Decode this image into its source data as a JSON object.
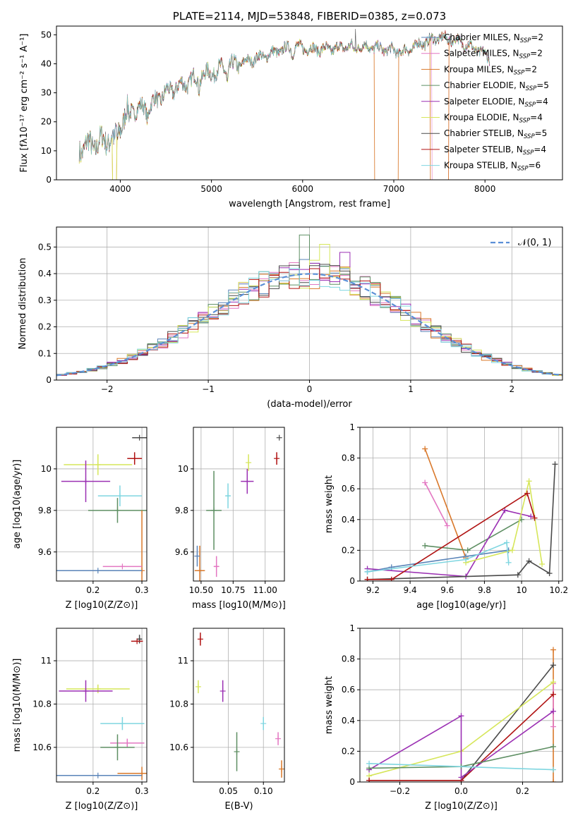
{
  "colors": {
    "Chabrier MILES": "#5a84b8",
    "Salpeter MILES": "#e377c2",
    "Kroupa MILES": "#d9782a",
    "Chabrier ELODIE": "#5e8f63",
    "Salpeter ELODIE": "#9b30b3",
    "Kroupa ELODIE": "#d6e65a",
    "Chabrier STELIB": "#4a4a4a",
    "Salpeter STELIB": "#b01212",
    "Kroupa STELIB": "#7fd6e0",
    "gaussian": "#5b8fd6",
    "grid": "#b0b0b0"
  },
  "chart_data": [
    {
      "id": "spectrum",
      "type": "line",
      "title": "PLATE=2114, MJD=53848, FIBERID=0385, z=0.073",
      "xlabel": "wavelength [Angstrom, rest frame]",
      "ylabel": "Flux [fλ10⁻¹⁷ erg cm⁻² s⁻¹ A⁻¹]",
      "xlim": [
        3300,
        8850
      ],
      "ylim": [
        0,
        53
      ],
      "xticks": [
        4000,
        5000,
        6000,
        7000,
        8000
      ],
      "yticks": [
        0,
        10,
        20,
        30,
        40,
        50
      ],
      "grid": false,
      "legend_position": "upper-right",
      "legend": [
        {
          "label": "Chabrier MILES, N",
          "sub": "SSP",
          "suffix": "=2"
        },
        {
          "label": "Salpeter MILES, N",
          "sub": "SSP",
          "suffix": "=2"
        },
        {
          "label": "Kroupa MILES, N",
          "sub": "SSP",
          "suffix": "=2"
        },
        {
          "label": "Chabrier ELODIE, N",
          "sub": "SSP",
          "suffix": "=5"
        },
        {
          "label": "Salpeter ELODIE, N",
          "sub": "SSP",
          "suffix": "=4"
        },
        {
          "label": "Kroupa ELODIE, N",
          "sub": "SSP",
          "suffix": "=4"
        },
        {
          "label": "Chabrier STELIB, N",
          "sub": "SSP",
          "suffix": "=5"
        },
        {
          "label": "Salpeter STELIB, N",
          "sub": "SSP",
          "suffix": "=4"
        },
        {
          "label": "Kroupa STELIB, N",
          "sub": "SSP",
          "suffix": "=6"
        }
      ],
      "continuum": [
        [
          3550,
          11
        ],
        [
          3700,
          12
        ],
        [
          3800,
          13
        ],
        [
          3900,
          15
        ],
        [
          4000,
          19
        ],
        [
          4100,
          24
        ],
        [
          4300,
          25
        ],
        [
          4500,
          30
        ],
        [
          4700,
          33
        ],
        [
          4900,
          36
        ],
        [
          5100,
          38
        ],
        [
          5300,
          40
        ],
        [
          5500,
          42
        ],
        [
          5700,
          44
        ],
        [
          5900,
          46
        ],
        [
          6100,
          45
        ],
        [
          6300,
          45
        ],
        [
          6500,
          46
        ],
        [
          6700,
          46
        ],
        [
          6900,
          45
        ],
        [
          7100,
          44
        ],
        [
          7300,
          47
        ],
        [
          7500,
          49
        ],
        [
          7700,
          48
        ],
        [
          7900,
          45
        ],
        [
          8050,
          42
        ]
      ],
      "spike": {
        "x": 6580,
        "y": 52
      },
      "dropouts": [
        {
          "series": "Kroupa MILES",
          "x0": 3915,
          "x1": 3960
        },
        {
          "series": "Kroupa ELODIE",
          "x0": 3915,
          "x1": 3960
        },
        {
          "series": "Kroupa MILES",
          "x0": 6785,
          "x1": 7050
        },
        {
          "series": "Kroupa MILES",
          "x0": 7400,
          "x1": 7600
        },
        {
          "series": "Salpeter MILES",
          "x0": 7420,
          "x1": 7600
        }
      ]
    },
    {
      "id": "residuals",
      "type": "histogram",
      "xlabel": "(data-model)/error",
      "ylabel": "Normed distribution",
      "xlim": [
        -2.5,
        2.5
      ],
      "ylim": [
        0,
        0.575
      ],
      "xticks": [
        -2,
        -1,
        0,
        1,
        2
      ],
      "yticks": [
        0.0,
        0.1,
        0.2,
        0.3,
        0.4,
        0.5
      ],
      "grid": true,
      "bin_width": 0.1,
      "legend_position": "upper-right",
      "legend": "𝒩(0, 1)",
      "gaussian": {
        "mu": 0,
        "sigma": 1
      },
      "series_peak_bins": {
        "Chabrier ELODIE": {
          "x": 0.0,
          "y": 0.545
        },
        "Kroupa ELODIE": {
          "x": 0.15,
          "y": 0.51
        },
        "Salpeter ELODIE": {
          "x": 0.35,
          "y": 0.48
        }
      }
    },
    {
      "id": "age_vs_Z",
      "type": "errorbar",
      "xlabel": "Z [log10(Z/Z⊙)]",
      "ylabel": "age  [log10(age/yr)]",
      "xlim": [
        0.125,
        0.31
      ],
      "ylim": [
        9.46,
        10.2
      ],
      "xticks": [
        0.2,
        0.3
      ],
      "yticks": [
        9.6,
        9.8,
        10.0
      ],
      "grid": true,
      "points": [
        {
          "series": "Chabrier STELIB",
          "x": 0.295,
          "xerr": 0.015,
          "y": 10.15,
          "yerr": 0.0
        },
        {
          "series": "Salpeter STELIB",
          "x": 0.285,
          "xerr": 0.015,
          "y": 10.05,
          "yerr": 0.03
        },
        {
          "series": "Kroupa ELODIE",
          "x": 0.21,
          "xerr": 0.07,
          "y": 10.02,
          "yerr": 0.05
        },
        {
          "series": "Salpeter ELODIE",
          "x": 0.185,
          "xerr": 0.05,
          "y": 9.94,
          "yerr": 0.1
        },
        {
          "series": "Kroupa STELIB",
          "x": 0.255,
          "xerr": 0.045,
          "y": 9.87,
          "yerr": 0.05
        },
        {
          "series": "Chabrier ELODIE",
          "x": 0.25,
          "xerr": 0.06,
          "y": 9.8,
          "yerr": 0.06
        },
        {
          "series": "Kroupa MILES",
          "x": 0.3,
          "xerr": 0.0,
          "y": 9.51,
          "yerr": 0.29
        },
        {
          "series": "Salpeter MILES",
          "x": 0.26,
          "xerr": 0.04,
          "y": 9.53,
          "yerr": 0.0
        },
        {
          "series": "Chabrier MILES",
          "x": 0.21,
          "xerr": 0.09,
          "y": 9.51,
          "yerr": 0.0
        }
      ]
    },
    {
      "id": "age_vs_mass",
      "type": "errorbar",
      "xlabel": "mass [log10(M/M⊙)]",
      "xlim": [
        10.44,
        11.15
      ],
      "ylim": [
        9.46,
        10.2
      ],
      "xticks": [
        10.5,
        10.75,
        11.0
      ],
      "xticklabels": [
        "10.50",
        "10.75",
        "11.00"
      ],
      "yticks": [
        9.6,
        9.8,
        10.0
      ],
      "grid": true,
      "points": [
        {
          "series": "Chabrier STELIB",
          "x": 11.11,
          "xerr": 0.0,
          "y": 10.15,
          "yerr": 0.0
        },
        {
          "series": "Salpeter STELIB",
          "x": 11.09,
          "xerr": 0.0,
          "y": 10.05,
          "yerr": 0.03
        },
        {
          "series": "Kroupa ELODIE",
          "x": 10.87,
          "xerr": 0.0,
          "y": 10.03,
          "yerr": 0.04
        },
        {
          "series": "Salpeter ELODIE",
          "x": 10.86,
          "xerr": 0.05,
          "y": 9.94,
          "yerr": 0.06
        },
        {
          "series": "Kroupa STELIB",
          "x": 10.71,
          "xerr": 0.02,
          "y": 9.87,
          "yerr": 0.06
        },
        {
          "series": "Chabrier ELODIE",
          "x": 10.6,
          "xerr": 0.06,
          "y": 9.8,
          "yerr": 0.19
        },
        {
          "series": "Salpeter MILES",
          "x": 10.62,
          "xerr": 0.02,
          "y": 9.53,
          "yerr": 0.05
        },
        {
          "series": "Kroupa MILES",
          "x": 10.49,
          "xerr": 0.04,
          "y": 9.51,
          "yerr": 0.12
        },
        {
          "series": "Chabrier MILES",
          "x": 10.47,
          "xerr": 0.0,
          "y": 9.58,
          "yerr": 0.05
        }
      ]
    },
    {
      "id": "weight_vs_age",
      "type": "line",
      "xlabel": "age  [log10(age/yr)]",
      "ylabel": "mass weight",
      "xlim": [
        9.13,
        10.22
      ],
      "ylim": [
        0,
        1.0
      ],
      "xticks": [
        9.2,
        9.4,
        9.6,
        9.8,
        10.0,
        10.2
      ],
      "yticks": [
        0.0,
        0.2,
        0.4,
        0.6,
        0.8,
        1.0
      ],
      "grid": true,
      "series": [
        {
          "name": "Salpeter MILES",
          "x": [
            9.48,
            9.6
          ],
          "y": [
            0.64,
            0.36
          ]
        },
        {
          "name": "Kroupa MILES",
          "x": [
            9.48,
            9.7
          ],
          "y": [
            0.86,
            0.15
          ]
        },
        {
          "name": "Chabrier MILES",
          "x": [
            9.17,
            9.3,
            9.7,
            9.93
          ],
          "y": [
            0.06,
            0.09,
            0.16,
            0.2
          ]
        },
        {
          "name": "Chabrier ELODIE",
          "x": [
            9.48,
            9.71,
            10.0
          ],
          "y": [
            0.23,
            0.2,
            0.4
          ]
        },
        {
          "name": "Salpeter ELODIE",
          "x": [
            9.17,
            9.7,
            9.91,
            10.05
          ],
          "y": [
            0.08,
            0.03,
            0.46,
            0.42
          ]
        },
        {
          "name": "Kroupa ELODIE",
          "x": [
            9.7,
            9.95,
            10.04,
            10.11
          ],
          "y": [
            0.12,
            0.2,
            0.65,
            0.11
          ]
        },
        {
          "name": "Chabrier STELIB",
          "x": [
            9.17,
            9.98,
            10.04,
            10.15,
            10.18
          ],
          "y": [
            0.01,
            0.04,
            0.13,
            0.05,
            0.76
          ]
        },
        {
          "name": "Salpeter STELIB",
          "x": [
            9.17,
            9.3,
            10.03,
            10.07
          ],
          "y": [
            0.01,
            0.01,
            0.57,
            0.41
          ]
        },
        {
          "name": "Kroupa STELIB",
          "x": [
            9.17,
            9.7,
            9.92,
            9.93
          ],
          "y": [
            0.06,
            0.14,
            0.25,
            0.12
          ]
        }
      ]
    },
    {
      "id": "mass_vs_Z",
      "type": "errorbar",
      "xlabel": "Z [log10(Z/Z⊙)]",
      "ylabel": "mass [log10(M/M⊙)]",
      "xlim": [
        0.125,
        0.31
      ],
      "ylim": [
        10.44,
        11.15
      ],
      "xticks": [
        0.2,
        0.3
      ],
      "yticks": [
        10.6,
        10.8,
        11.0
      ],
      "grid": true,
      "points": [
        {
          "series": "Chabrier STELIB",
          "x": 0.295,
          "xerr": 0.005,
          "y": 11.1,
          "yerr": 0.02
        },
        {
          "series": "Salpeter STELIB",
          "x": 0.29,
          "xerr": 0.012,
          "y": 11.09,
          "yerr": 0.0
        },
        {
          "series": "Kroupa ELODIE",
          "x": 0.21,
          "xerr": 0.065,
          "y": 10.87,
          "yerr": 0.02
        },
        {
          "series": "Salpeter ELODIE",
          "x": 0.185,
          "xerr": 0.055,
          "y": 10.86,
          "yerr": 0.05
        },
        {
          "series": "Kroupa STELIB",
          "x": 0.26,
          "xerr": 0.045,
          "y": 10.71,
          "yerr": 0.03
        },
        {
          "series": "Salpeter MILES",
          "x": 0.27,
          "xerr": 0.035,
          "y": 10.62,
          "yerr": 0.02
        },
        {
          "series": "Chabrier ELODIE",
          "x": 0.25,
          "xerr": 0.035,
          "y": 10.6,
          "yerr": 0.06
        },
        {
          "series": "Kroupa MILES",
          "x": 0.3,
          "xerr": 0.05,
          "y": 10.48,
          "yerr": 0.03
        },
        {
          "series": "Chabrier MILES",
          "x": 0.21,
          "xerr": 0.09,
          "y": 10.47,
          "yerr": 0.0
        }
      ]
    },
    {
      "id": "mass_vs_ebv",
      "type": "errorbar",
      "xlabel": "E(B-V)",
      "xlim": [
        0.0,
        0.13
      ],
      "ylim": [
        10.44,
        11.15
      ],
      "xticks": [
        0.05,
        0.1
      ],
      "xticklabels": [
        "0.05",
        "0.10"
      ],
      "yticks": [
        10.6,
        10.8,
        11.0
      ],
      "grid": true,
      "points": [
        {
          "series": "Salpeter STELIB",
          "x": 0.01,
          "xerr": 0.0,
          "y": 11.1,
          "yerr": 0.03
        },
        {
          "series": "Kroupa ELODIE",
          "x": 0.007,
          "xerr": 0.0,
          "y": 10.88,
          "yerr": 0.03
        },
        {
          "series": "Salpeter ELODIE",
          "x": 0.042,
          "xerr": 0.0,
          "y": 10.86,
          "yerr": 0.05
        },
        {
          "series": "Kroupa STELIB",
          "x": 0.1,
          "xerr": 0.0,
          "y": 10.71,
          "yerr": 0.03
        },
        {
          "series": "Salpeter MILES",
          "x": 0.121,
          "xerr": 0.0,
          "y": 10.64,
          "yerr": 0.03
        },
        {
          "series": "Chabrier ELODIE",
          "x": 0.062,
          "xerr": 0.0,
          "y": 10.58,
          "yerr": 0.09
        },
        {
          "series": "Kroupa MILES",
          "x": 0.126,
          "xerr": 0.0,
          "y": 10.5,
          "yerr": 0.04
        }
      ]
    },
    {
      "id": "weight_vs_Z",
      "type": "line",
      "xlabel": "Z [log10(Z/Z⊙)]",
      "ylabel": "mass weight",
      "xlim": [
        -0.33,
        0.33
      ],
      "ylim": [
        0,
        1.0
      ],
      "xticks": [
        -0.2,
        0.0,
        0.2
      ],
      "xticklabels": [
        "−0.2",
        "0.0",
        "0.2"
      ],
      "yticks": [
        0.0,
        0.2,
        0.4,
        0.6,
        0.8,
        1.0
      ],
      "grid": true,
      "series": [
        {
          "name": "Kroupa MILES",
          "x": [
            0.3,
            0.3
          ],
          "y": [
            0.86,
            0.0
          ]
        },
        {
          "name": "Salpeter MILES",
          "x": [
            0.3,
            0.3
          ],
          "y": [
            0.64,
            0.36
          ]
        },
        {
          "name": "Chabrier STELIB",
          "x": [
            -0.3,
            0.0,
            0.3
          ],
          "y": [
            0.01,
            0.01,
            0.76
          ]
        },
        {
          "name": "Kroupa ELODIE",
          "x": [
            -0.3,
            0.0,
            0.3
          ],
          "y": [
            0.04,
            0.2,
            0.65
          ]
        },
        {
          "name": "Salpeter STELIB",
          "x": [
            -0.3,
            0.0,
            0.3
          ],
          "y": [
            0.01,
            0.01,
            0.57
          ]
        },
        {
          "name": "Salpeter ELODIE",
          "x": [
            -0.3,
            0.0,
            0.0,
            0.3
          ],
          "y": [
            0.08,
            0.43,
            0.03,
            0.46
          ]
        },
        {
          "name": "Chabrier ELODIE",
          "x": [
            -0.3,
            0.0,
            0.3
          ],
          "y": [
            0.09,
            0.1,
            0.23
          ]
        },
        {
          "name": "Kroupa STELIB",
          "x": [
            -0.3,
            0.3
          ],
          "y": [
            0.12,
            0.08
          ]
        }
      ]
    }
  ]
}
